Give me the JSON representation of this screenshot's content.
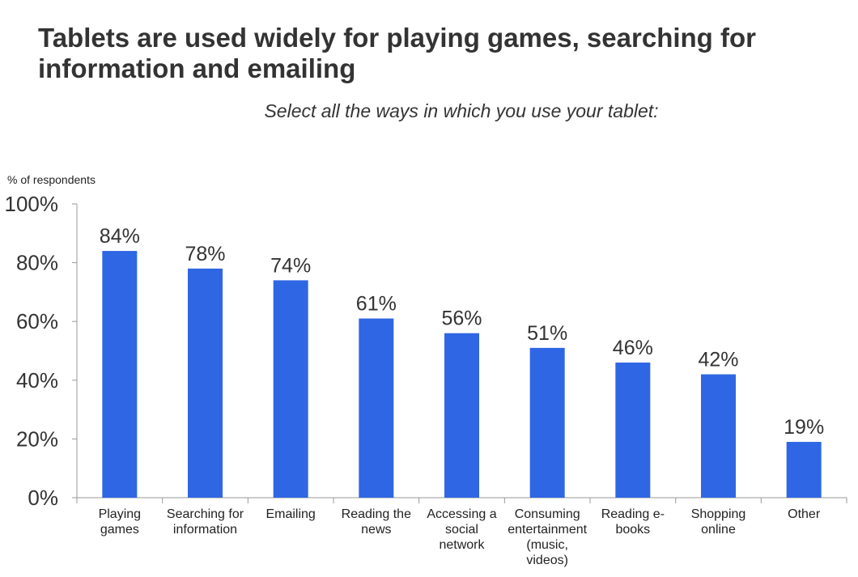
{
  "title": "Tablets are used widely for playing games, searching for information and emailing",
  "subtitle": "Select all the ways in which you use your tablet:",
  "chart_data": {
    "type": "bar",
    "title": "",
    "ylabel": "% of respondents",
    "xlabel": "",
    "ylim": [
      0,
      100
    ],
    "yticks": [
      0,
      20,
      40,
      60,
      80,
      100
    ],
    "ytick_labels": [
      "0%",
      "20%",
      "40%",
      "60%",
      "80%",
      "100%"
    ],
    "categories": [
      "Playing\ngames",
      "Searching for\ninformation",
      "Emailing",
      "Reading the\nnews",
      "Accessing a\nsocial\nnetwork",
      "Consuming\nentertainment\n(music,\nvideos)",
      "Reading e-\nbooks",
      "Shopping\nonline",
      "Other"
    ],
    "values": [
      84,
      78,
      74,
      61,
      56,
      51,
      46,
      42,
      19
    ],
    "value_labels": [
      "84%",
      "78%",
      "74%",
      "61%",
      "56%",
      "51%",
      "46%",
      "42%",
      "19%"
    ],
    "bar_color": "#2f66e3",
    "grid": false,
    "legend": "none"
  }
}
